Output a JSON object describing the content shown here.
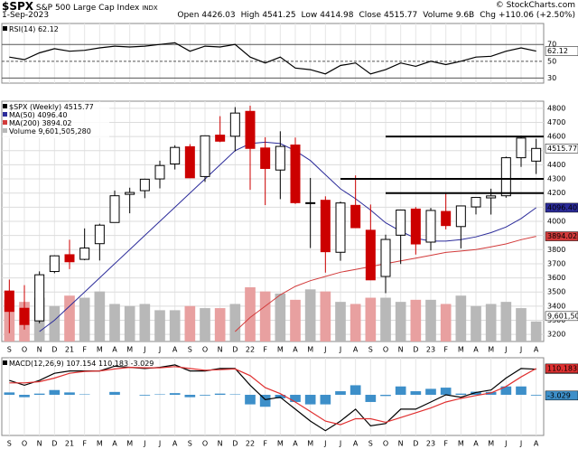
{
  "header": {
    "symbol": "$SPX",
    "name": "S&P 500 Large Cap Index",
    "exchange": "INDX",
    "copyright": "© StockCharts.com",
    "date": "1-Sep-2023",
    "stats": [
      {
        "label": "Open",
        "value": "4426.03"
      },
      {
        "label": "High",
        "value": "4541.25"
      },
      {
        "label": "Low",
        "value": "4414.98"
      },
      {
        "label": "Close",
        "value": "4515.77"
      },
      {
        "label": "Volume",
        "value": "9.6B"
      },
      {
        "label": "Chg",
        "value": "+110.06 (+2.50%)"
      }
    ]
  },
  "chart_data": [
    {
      "type": "line",
      "ylim": [
        24,
        95
      ],
      "yticks": [
        30,
        50,
        70
      ],
      "series": [
        {
          "name": "RSI(14)",
          "color": "#000000",
          "value_label": "62.12",
          "values": [
            55,
            52,
            60,
            65,
            62,
            63,
            66,
            68,
            67,
            68,
            70,
            72,
            62,
            68,
            67,
            70,
            55,
            48,
            55,
            42,
            40,
            35,
            45,
            48,
            35,
            40,
            48,
            44,
            50,
            46,
            50,
            55,
            56,
            62,
            66,
            62.12
          ]
        }
      ]
    },
    {
      "type": "candlestick",
      "ylim": [
        3150,
        4850
      ],
      "yticks": [
        3200,
        3300,
        3400,
        3500,
        3600,
        3700,
        3800,
        3900,
        4000,
        4100,
        4200,
        4300,
        4400,
        4500,
        4600,
        4700,
        4800
      ],
      "categories": [
        "S",
        "O",
        "N",
        "D",
        "21",
        "F",
        "M",
        "A",
        "M",
        "J",
        "J",
        "A",
        "S",
        "O",
        "N",
        "D",
        "22",
        "F",
        "M",
        "A",
        "M",
        "J",
        "J",
        "A",
        "S",
        "O",
        "N",
        "D",
        "23",
        "F",
        "M",
        "A",
        "M",
        "J",
        "J",
        "A"
      ],
      "levels": [
        4600,
        4300,
        4200
      ],
      "candles": {
        "name": "$SPX (Weekly)",
        "value_label": "4515.77",
        "open": [
          3507,
          3385,
          3296,
          3645,
          3764,
          3731,
          3842,
          3992,
          4191,
          4217,
          4300,
          4406,
          4528,
          4317,
          4610,
          4602,
          4778,
          4519,
          4363,
          4540,
          4130,
          4149,
          3781,
          4113,
          3937,
          3610,
          3902,
          4087,
          3853,
          4070,
          3963,
          4102,
          4166,
          4181,
          4450,
          4426
        ],
        "high": [
          3588,
          3549,
          3646,
          3760,
          3870,
          3950,
          3983,
          4218,
          4238,
          4302,
          4429,
          4538,
          4546,
          4608,
          4744,
          4808,
          4818,
          4595,
          4637,
          4593,
          4307,
          4177,
          4140,
          4325,
          4119,
          3906,
          4080,
          4101,
          4095,
          4195,
          4110,
          4170,
          4231,
          4458,
          4607,
          4584
        ],
        "low": [
          3209,
          3234,
          3279,
          3633,
          3662,
          3725,
          3723,
          3992,
          4057,
          4164,
          4233,
          4367,
          4306,
          4279,
          4560,
          4495,
          4223,
          4115,
          4157,
          4123,
          3811,
          3637,
          3721,
          3955,
          3584,
          3492,
          3698,
          3765,
          3794,
          3943,
          3809,
          4049,
          4048,
          4167,
          4385,
          4335
        ],
        "close": [
          3363,
          3270,
          3622,
          3756,
          3714,
          3811,
          3973,
          4181,
          4204,
          4298,
          4395,
          4523,
          4308,
          4605,
          4567,
          4766,
          4516,
          4374,
          4530,
          4132,
          4132,
          3785,
          4130,
          3955,
          3586,
          3872,
          4080,
          3840,
          4077,
          3970,
          4109,
          4169,
          4180,
          4450,
          4589,
          4515.77
        ]
      },
      "series": [
        {
          "name": "MA(50)",
          "color": "#2b2b9a",
          "value_label": "4096.40",
          "values": [
            null,
            null,
            3220,
            3300,
            3400,
            3500,
            3600,
            3700,
            3800,
            3900,
            4000,
            4100,
            4200,
            4300,
            4400,
            4500,
            4550,
            4560,
            4550,
            4500,
            4430,
            4330,
            4230,
            4160,
            4080,
            3990,
            3930,
            3880,
            3860,
            3860,
            3870,
            3890,
            3920,
            3960,
            4020,
            4096.4
          ]
        },
        {
          "name": "MA(200)",
          "color": "#d23a3a",
          "value_label": "3894.02",
          "values": [
            null,
            null,
            null,
            null,
            null,
            null,
            null,
            null,
            null,
            null,
            null,
            null,
            null,
            null,
            null,
            3220,
            3320,
            3400,
            3480,
            3540,
            3580,
            3610,
            3640,
            3660,
            3680,
            3700,
            3720,
            3740,
            3760,
            3780,
            3790,
            3800,
            3820,
            3840,
            3870,
            3894.02
          ]
        }
      ],
      "volume": {
        "name": "Volume",
        "value_label": "9,601,505,280",
        "values": [
          20000000000,
          19000000000,
          21000000000,
          17000000000,
          22000000000,
          21000000000,
          24000000000,
          18000000000,
          17000000000,
          18000000000,
          15000000000,
          15000000000,
          17000000000,
          16000000000,
          16000000000,
          18000000000,
          26000000000,
          24000000000,
          23000000000,
          20000000000,
          25000000000,
          24000000000,
          19000000000,
          18000000000,
          21000000000,
          21000000000,
          19000000000,
          20000000000,
          20000000000,
          18000000000,
          22000000000,
          17000000000,
          18000000000,
          19000000000,
          16000000000,
          9601505280
        ]
      }
    },
    {
      "type": "line",
      "title": "MACD(12,26,9)",
      "ylim": [
        -170,
        155
      ],
      "categories": [
        "S",
        "O",
        "N",
        "D",
        "21",
        "F",
        "M",
        "A",
        "M",
        "J",
        "J",
        "A",
        "S",
        "O",
        "N",
        "D",
        "22",
        "F",
        "M",
        "A",
        "M",
        "J",
        "J",
        "A",
        "S",
        "O",
        "N",
        "D",
        "23",
        "F",
        "M",
        "A",
        "M",
        "J",
        "J",
        "A"
      ],
      "series": [
        {
          "style": "bar",
          "color": "#3d8fc9",
          "value_label": "-3.029",
          "values": [
            10,
            -10,
            5,
            20,
            10,
            2,
            0,
            12,
            0,
            -3,
            2,
            7,
            -10,
            -3,
            5,
            2,
            -40,
            -50,
            -15,
            -30,
            -40,
            -40,
            15,
            40,
            -30,
            -5,
            35,
            15,
            25,
            30,
            5,
            13,
            12,
            35,
            35,
            -3.029
          ]
        },
        {
          "style": "line",
          "color": "#000000",
          "value_label": "107.154",
          "values": [
            60,
            40,
            60,
            90,
            100,
            100,
            100,
            120,
            115,
            110,
            115,
            125,
            100,
            100,
            110,
            110,
            40,
            -20,
            -10,
            -60,
            -110,
            -150,
            -110,
            -60,
            -130,
            -120,
            -60,
            -60,
            -30,
            0,
            -10,
            10,
            20,
            70,
            110,
            107.154
          ]
        },
        {
          "style": "line",
          "color": "#e03030",
          "value_label": "110.183",
          "values": [
            50,
            50,
            55,
            70,
            90,
            98,
            100,
            108,
            115,
            113,
            113,
            118,
            110,
            103,
            105,
            108,
            80,
            30,
            5,
            -30,
            -70,
            -110,
            -125,
            -100,
            -100,
            -115,
            -95,
            -75,
            -55,
            -30,
            -15,
            -3,
            8,
            35,
            75,
            110.183
          ]
        }
      ]
    }
  ]
}
